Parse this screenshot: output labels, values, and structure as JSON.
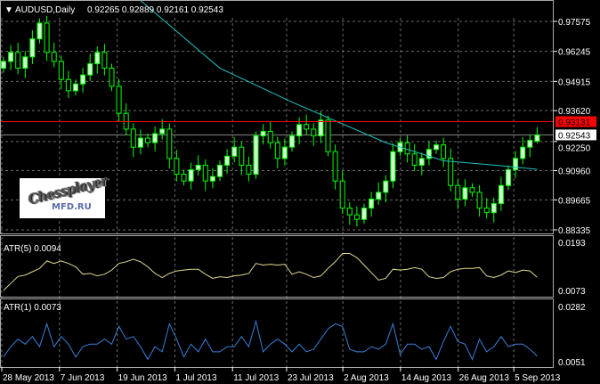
{
  "header": {
    "symbol": "AUDUSD,Daily",
    "ohlc": "0.92265 0.92889 0.92161 0.92543"
  },
  "chart_data": {
    "type": "candlestick",
    "symbol": "AUDUSD",
    "timeframe": "Daily",
    "price_ticks": [
      "0.97575",
      "0.96245",
      "0.94915",
      "0.93620",
      "0.92250",
      "0.90960",
      "0.89665",
      "0.88335"
    ],
    "ylim": [
      0.88335,
      0.97575
    ],
    "date_ticks": [
      {
        "label": "28 May 2013",
        "index": 0
      },
      {
        "label": "7 Jun 2013",
        "index": 8
      },
      {
        "label": "19 Jun 2013",
        "index": 16
      },
      {
        "label": "1 Jul 2013",
        "index": 24
      },
      {
        "label": "11 Jul 2013",
        "index": 32
      },
      {
        "label": "23 Jul 2013",
        "index": 39.5
      },
      {
        "label": "2 Aug 2013",
        "index": 47.3
      },
      {
        "label": "14 Aug 2013",
        "index": 55.3
      },
      {
        "label": "26 Aug 2013",
        "index": 63.3
      },
      {
        "label": "5 Sep 2013",
        "index": 71
      }
    ],
    "closes": [
      0.958,
      0.962,
      0.955,
      0.96,
      0.968,
      0.975,
      0.962,
      0.958,
      0.95,
      0.945,
      0.948,
      0.952,
      0.957,
      0.962,
      0.955,
      0.947,
      0.935,
      0.928,
      0.92,
      0.924,
      0.922,
      0.926,
      0.928,
      0.915,
      0.908,
      0.905,
      0.91,
      0.912,
      0.905,
      0.907,
      0.912,
      0.916,
      0.92,
      0.912,
      0.908,
      0.925,
      0.927,
      0.922,
      0.915,
      0.92,
      0.925,
      0.93,
      0.928,
      0.925,
      0.932,
      0.918,
      0.905,
      0.893,
      0.89,
      0.888,
      0.893,
      0.897,
      0.9,
      0.905,
      0.918,
      0.922,
      0.917,
      0.912,
      0.915,
      0.919,
      0.921,
      0.915,
      0.903,
      0.897,
      0.902,
      0.9,
      0.893,
      0.891,
      0.895,
      0.903,
      0.91,
      0.915,
      0.92,
      0.923,
      0.92543
    ],
    "last_open": 0.92265,
    "last_high": 0.92889,
    "last_low": 0.92161,
    "moving_average": [
      [
        19,
        0.985
      ],
      [
        30,
        0.955
      ],
      [
        40,
        0.94
      ],
      [
        53,
        0.922
      ],
      [
        61,
        0.914
      ],
      [
        69,
        0.9118
      ],
      [
        74,
        0.9102
      ]
    ],
    "horizontal_line": {
      "value": "0.93131",
      "color": "#ff0000"
    },
    "bid_label": "0.92543",
    "atr5": {
      "label": "ATR(5) 0.0094",
      "ticks": [
        "0.0193",
        "0.0073"
      ],
      "ylim": [
        0.0073,
        0.0193
      ],
      "color": "#e0d890"
    },
    "atr1": {
      "label": "ATR(1) 0.0073",
      "ticks": [
        "0.0282",
        "0.0051"
      ],
      "ylim": [
        0.0051,
        0.0282
      ],
      "color": "#3a7fd8"
    },
    "colors": {
      "bull_body": "#ccffcc",
      "candle_line": "#00ff00",
      "ma": "#20c0c0",
      "grid": "#6a6a6a"
    }
  },
  "logo": {
    "line1": "Chessplayer",
    "line2": "MFD.RU"
  }
}
